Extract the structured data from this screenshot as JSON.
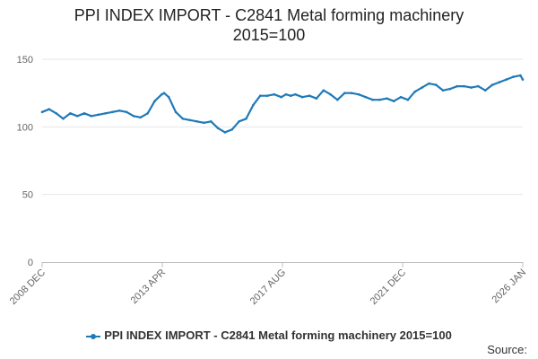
{
  "title_line1": "PPI INDEX IMPORT - C2841 Metal forming machinery",
  "title_line2": "2015=100",
  "source_label": "Source:",
  "chart_data": {
    "type": "line",
    "title": "PPI INDEX IMPORT - C2841 Metal forming machinery 2015=100",
    "xlabel": "",
    "ylabel": "",
    "ylim": [
      0,
      150
    ],
    "yticks": [
      0,
      50,
      100,
      150
    ],
    "x_tick_labels": [
      "2008 DEC",
      "2013 APR",
      "2017 AUG",
      "2021 DEC",
      "2026 JAN"
    ],
    "grid": true,
    "legend_position": "bottom",
    "colors": {
      "series": "#1f7ab8",
      "grid": "#e6e6e6",
      "axis": "#c0c0c0"
    },
    "series": [
      {
        "name": "PPI INDEX IMPORT - C2841 Metal forming machinery 2015=100",
        "x": [
          "2008-12",
          "2009-03",
          "2009-06",
          "2009-09",
          "2009-12",
          "2010-03",
          "2010-06",
          "2010-09",
          "2010-12",
          "2011-03",
          "2011-06",
          "2011-09",
          "2011-12",
          "2012-03",
          "2012-06",
          "2012-09",
          "2012-12",
          "2013-03",
          "2013-04",
          "2013-06",
          "2013-09",
          "2013-12",
          "2014-03",
          "2014-06",
          "2014-09",
          "2014-12",
          "2015-03",
          "2015-06",
          "2015-09",
          "2015-12",
          "2016-03",
          "2016-06",
          "2016-09",
          "2016-12",
          "2017-03",
          "2017-06",
          "2017-08",
          "2017-10",
          "2017-12",
          "2018-03",
          "2018-06",
          "2018-09",
          "2018-12",
          "2019-03",
          "2019-06",
          "2019-09",
          "2019-12",
          "2020-03",
          "2020-06",
          "2020-09",
          "2020-12",
          "2021-03",
          "2021-06",
          "2021-09",
          "2021-12",
          "2022-03",
          "2022-06",
          "2022-09",
          "2022-12",
          "2023-03",
          "2023-06",
          "2023-09",
          "2023-12",
          "2024-03",
          "2024-06",
          "2024-09",
          "2024-12",
          "2025-03",
          "2025-06",
          "2025-09",
          "2025-12",
          "2026-01"
        ],
        "values": [
          111,
          113,
          110,
          106,
          110,
          108,
          110,
          108,
          109,
          110,
          111,
          112,
          111,
          108,
          107,
          110,
          119,
          124,
          125,
          122,
          111,
          106,
          105,
          104,
          103,
          104,
          99,
          96,
          98,
          104,
          106,
          116,
          123,
          123,
          124,
          122,
          124,
          123,
          124,
          122,
          123,
          121,
          127,
          124,
          120,
          125,
          125,
          124,
          122,
          120,
          120,
          121,
          119,
          122,
          120,
          126,
          129,
          132,
          131,
          127,
          128,
          130,
          130,
          129,
          130,
          127,
          131,
          133,
          135,
          137,
          138,
          135
        ]
      }
    ]
  }
}
